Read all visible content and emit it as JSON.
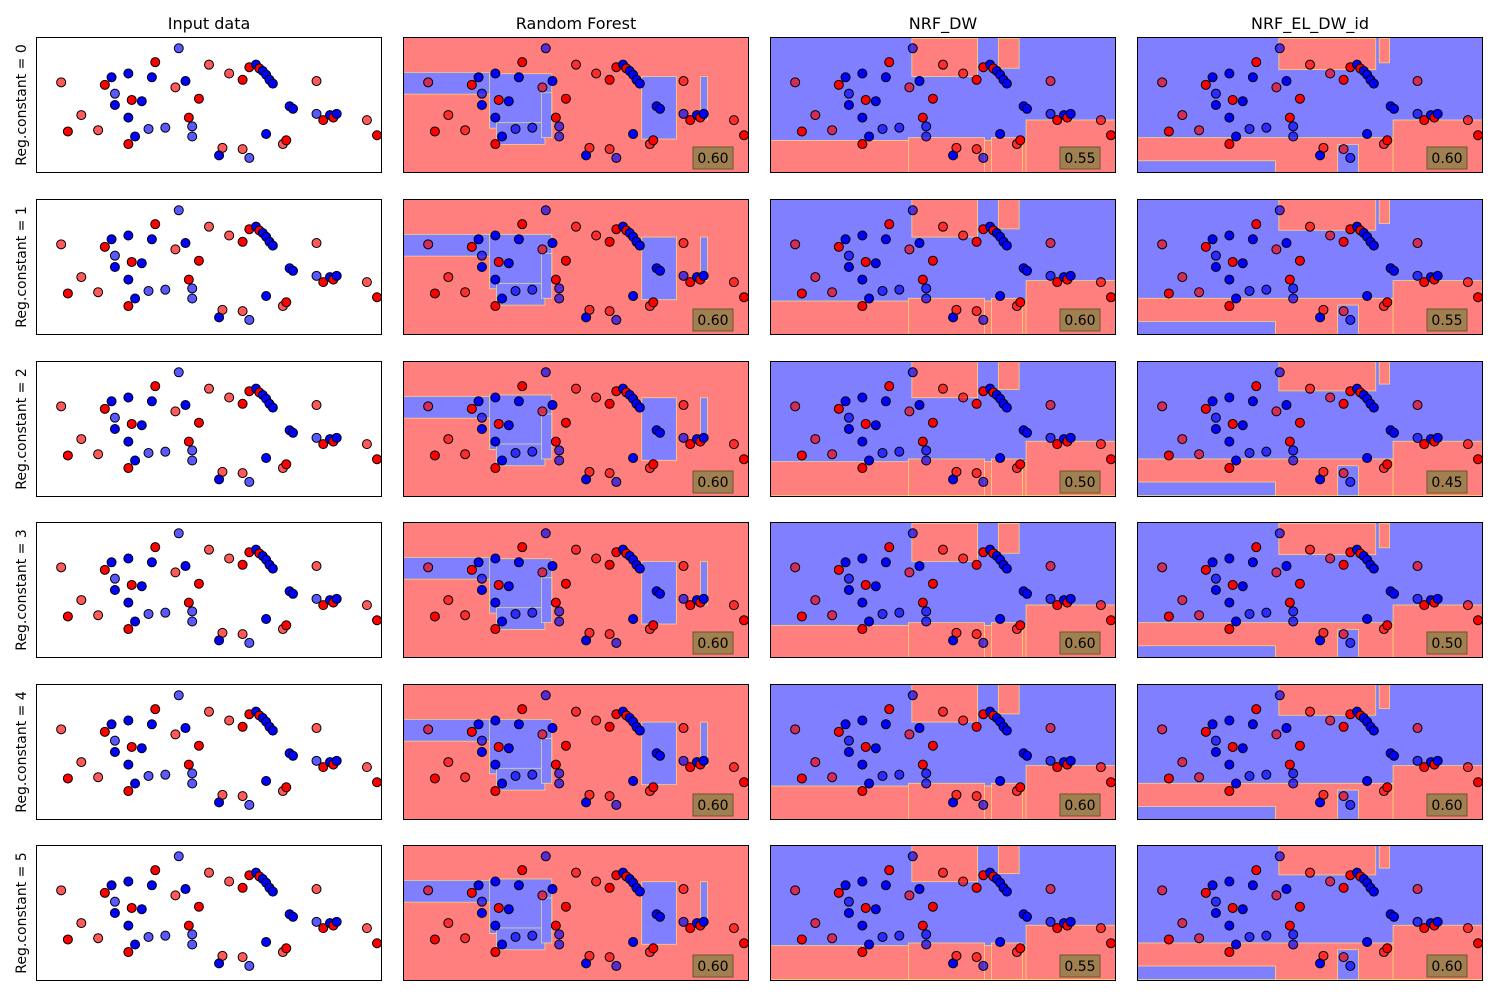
{
  "column_titles": [
    "Input data",
    "Random Forest",
    "NRF_DW",
    "NRF_EL_DW_id"
  ],
  "row_labels": [
    "Reg.constant = 0",
    "Reg.constant = 1",
    "Reg.constant = 2",
    "Reg.constant = 3",
    "Reg.constant = 4",
    "Reg.constant = 5"
  ],
  "colors": {
    "class_red": "#ff0000",
    "class_blue": "#0000ff",
    "region_red": "#ff7f7f",
    "region_blue": "#7f7fff",
    "boundary": "#ffff66",
    "score_box": "#a08050"
  },
  "chart_data": {
    "type": "scatter",
    "xlim": [
      0,
      1
    ],
    "ylim": [
      0,
      1
    ],
    "grid": false,
    "ticks": false,
    "points": [
      {
        "x": 0.06,
        "y": 0.68,
        "c": "red",
        "test": true
      },
      {
        "x": 0.12,
        "y": 0.42,
        "c": "red",
        "test": true
      },
      {
        "x": 0.08,
        "y": 0.29,
        "c": "red",
        "test": false
      },
      {
        "x": 0.17,
        "y": 0.3,
        "c": "red",
        "test": true
      },
      {
        "x": 0.19,
        "y": 0.66,
        "c": "red",
        "test": false
      },
      {
        "x": 0.22,
        "y": 0.59,
        "c": "blue",
        "test": true
      },
      {
        "x": 0.21,
        "y": 0.72,
        "c": "blue",
        "test": false
      },
      {
        "x": 0.22,
        "y": 0.5,
        "c": "blue",
        "test": false
      },
      {
        "x": 0.26,
        "y": 0.75,
        "c": "blue",
        "test": false
      },
      {
        "x": 0.27,
        "y": 0.54,
        "c": "red",
        "test": false
      },
      {
        "x": 0.26,
        "y": 0.4,
        "c": "blue",
        "test": false
      },
      {
        "x": 0.26,
        "y": 0.19,
        "c": "red",
        "test": false
      },
      {
        "x": 0.28,
        "y": 0.25,
        "c": "blue",
        "test": false
      },
      {
        "x": 0.3,
        "y": 0.53,
        "c": "blue",
        "test": false
      },
      {
        "x": 0.33,
        "y": 0.72,
        "c": "blue",
        "test": false
      },
      {
        "x": 0.34,
        "y": 0.84,
        "c": "red",
        "test": false
      },
      {
        "x": 0.4,
        "y": 0.64,
        "c": "red",
        "test": true
      },
      {
        "x": 0.32,
        "y": 0.31,
        "c": "blue",
        "test": true
      },
      {
        "x": 0.37,
        "y": 0.32,
        "c": "blue",
        "test": true
      },
      {
        "x": 0.41,
        "y": 0.95,
        "c": "blue",
        "test": true
      },
      {
        "x": 0.43,
        "y": 0.69,
        "c": "blue",
        "test": false
      },
      {
        "x": 0.44,
        "y": 0.4,
        "c": "red",
        "test": false
      },
      {
        "x": 0.45,
        "y": 0.25,
        "c": "blue",
        "test": true
      },
      {
        "x": 0.45,
        "y": 0.33,
        "c": "blue",
        "test": true
      },
      {
        "x": 0.47,
        "y": 0.55,
        "c": "red",
        "test": false
      },
      {
        "x": 0.5,
        "y": 0.82,
        "c": "red",
        "test": true
      },
      {
        "x": 0.53,
        "y": 0.1,
        "c": "blue",
        "test": false
      },
      {
        "x": 0.54,
        "y": 0.16,
        "c": "red",
        "test": true
      },
      {
        "x": 0.56,
        "y": 0.75,
        "c": "red",
        "test": true
      },
      {
        "x": 0.6,
        "y": 0.15,
        "c": "red",
        "test": true
      },
      {
        "x": 0.6,
        "y": 0.7,
        "c": "red",
        "test": false
      },
      {
        "x": 0.62,
        "y": 0.08,
        "c": "blue",
        "test": true
      },
      {
        "x": 0.62,
        "y": 0.8,
        "c": "red",
        "test": false
      },
      {
        "x": 0.64,
        "y": 0.82,
        "c": "blue",
        "test": false
      },
      {
        "x": 0.65,
        "y": 0.79,
        "c": "red",
        "test": false
      },
      {
        "x": 0.66,
        "y": 0.77,
        "c": "blue",
        "test": false
      },
      {
        "x": 0.67,
        "y": 0.74,
        "c": "blue",
        "test": false
      },
      {
        "x": 0.67,
        "y": 0.27,
        "c": "blue",
        "test": false
      },
      {
        "x": 0.68,
        "y": 0.7,
        "c": "blue",
        "test": false
      },
      {
        "x": 0.69,
        "y": 0.67,
        "c": "blue",
        "test": false
      },
      {
        "x": 0.72,
        "y": 0.19,
        "c": "red",
        "test": true
      },
      {
        "x": 0.73,
        "y": 0.22,
        "c": "red",
        "test": false
      },
      {
        "x": 0.74,
        "y": 0.49,
        "c": "blue",
        "test": false
      },
      {
        "x": 0.75,
        "y": 0.47,
        "c": "blue",
        "test": false
      },
      {
        "x": 0.82,
        "y": 0.69,
        "c": "red",
        "test": true
      },
      {
        "x": 0.82,
        "y": 0.43,
        "c": "blue",
        "test": true
      },
      {
        "x": 0.84,
        "y": 0.38,
        "c": "red",
        "test": false
      },
      {
        "x": 0.86,
        "y": 0.42,
        "c": "blue",
        "test": false
      },
      {
        "x": 0.87,
        "y": 0.4,
        "c": "red",
        "test": false
      },
      {
        "x": 0.88,
        "y": 0.43,
        "c": "blue",
        "test": false
      },
      {
        "x": 0.97,
        "y": 0.38,
        "c": "red",
        "test": true
      },
      {
        "x": 1.0,
        "y": 0.26,
        "c": "red",
        "test": false
      }
    ],
    "decision_regions": {
      "Random Forest": [
        {
          "x0": 0.0,
          "x1": 0.27,
          "y0": 0.58,
          "y1": 0.74,
          "c": "blue"
        },
        {
          "x0": 0.25,
          "x1": 0.43,
          "y0": 0.34,
          "y1": 0.74,
          "c": "blue"
        },
        {
          "x0": 0.27,
          "x1": 0.41,
          "y0": 0.22,
          "y1": 0.38,
          "c": "blue"
        },
        {
          "x0": 0.4,
          "x1": 0.43,
          "y0": 0.27,
          "y1": 0.6,
          "c": "blue"
        },
        {
          "x0": 0.69,
          "x1": 0.79,
          "y0": 0.26,
          "y1": 0.72,
          "c": "blue"
        },
        {
          "x0": 0.86,
          "x1": 0.88,
          "y0": 0.4,
          "y1": 0.72,
          "c": "blue"
        }
      ],
      "NRF_DW": [
        {
          "x0": 0.0,
          "x1": 1.0,
          "y0": 0.0,
          "y1": 1.0,
          "c": "blue"
        },
        {
          "x0": 0.0,
          "x1": 1.0,
          "y0": 0.0,
          "y1": 0.25,
          "c": "red"
        },
        {
          "x0": 0.4,
          "x1": 0.62,
          "y0": 0.0,
          "y1": 0.27,
          "c": "red"
        },
        {
          "x0": 0.64,
          "x1": 0.73,
          "y0": 0.0,
          "y1": 0.27,
          "c": "red"
        },
        {
          "x0": 0.41,
          "x1": 0.6,
          "y0": 0.72,
          "y1": 1.0,
          "c": "red"
        },
        {
          "x0": 0.66,
          "x1": 0.72,
          "y0": 0.78,
          "y1": 1.0,
          "c": "red"
        },
        {
          "x0": 0.74,
          "x1": 1.0,
          "y0": 0.0,
          "y1": 0.4,
          "c": "red"
        }
      ],
      "NRF_EL_DW_id": [
        {
          "x0": 0.0,
          "x1": 1.0,
          "y0": 0.0,
          "y1": 1.0,
          "c": "blue"
        },
        {
          "x0": 0.0,
          "x1": 1.0,
          "y0": 0.0,
          "y1": 0.27,
          "c": "red"
        },
        {
          "x0": 0.0,
          "x1": 0.4,
          "y0": 0.0,
          "y1": 0.1,
          "c": "blue"
        },
        {
          "x0": 0.58,
          "x1": 0.64,
          "y0": 0.0,
          "y1": 0.22,
          "c": "blue"
        },
        {
          "x0": 0.41,
          "x1": 0.69,
          "y0": 0.77,
          "y1": 1.0,
          "c": "red"
        },
        {
          "x0": 0.7,
          "x1": 0.73,
          "y0": 0.82,
          "y1": 1.0,
          "c": "red"
        },
        {
          "x0": 0.74,
          "x1": 1.0,
          "y0": 0.0,
          "y1": 0.4,
          "c": "red"
        }
      ]
    },
    "scores": [
      [
        "0.60",
        "0.55",
        "0.60"
      ],
      [
        "0.60",
        "0.60",
        "0.55"
      ],
      [
        "0.60",
        "0.50",
        "0.45"
      ],
      [
        "0.60",
        "0.60",
        "0.50"
      ],
      [
        "0.60",
        "0.60",
        "0.60"
      ],
      [
        "0.60",
        "0.55",
        "0.60"
      ]
    ]
  }
}
